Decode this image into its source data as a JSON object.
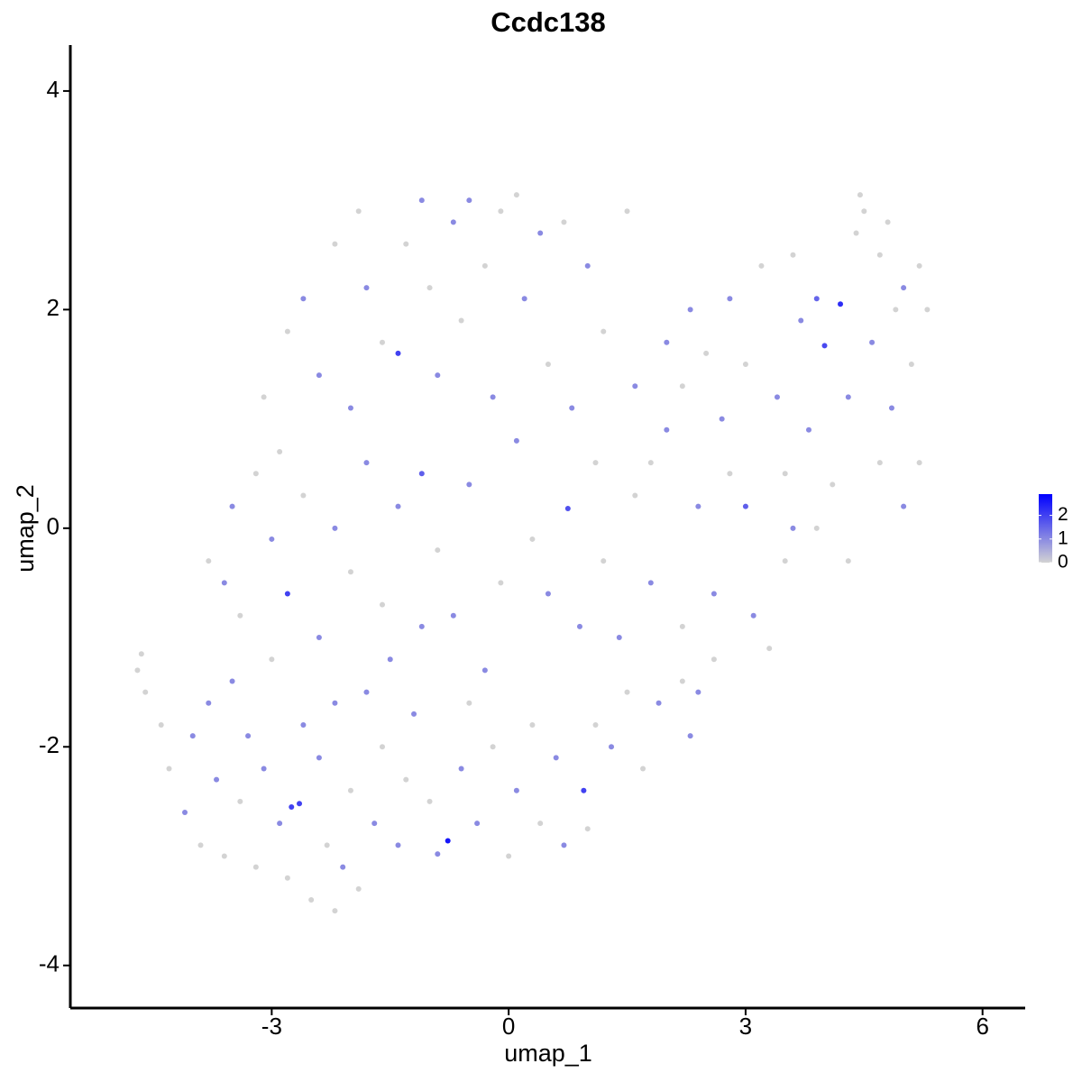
{
  "chart_data": {
    "type": "scatter",
    "title": "Ccdc138",
    "x_label": "umap_1",
    "y_label": "umap_2",
    "xlim": [
      -5.55,
      6.54
    ],
    "ylim": [
      -4.39,
      4.42
    ],
    "xticks": [
      -3,
      0,
      3,
      6
    ],
    "yticks": [
      -4,
      -2,
      0,
      2,
      4
    ],
    "color_low": "#d3d3d3",
    "color_high": "#0000ff",
    "color_lim": [
      0,
      2.9
    ],
    "color_ticks": [
      0,
      1,
      2
    ],
    "x": [
      -4.7,
      -4.65,
      -4.6,
      -4.4,
      -4.3,
      -4.1,
      -4.0,
      -3.9,
      -3.8,
      -3.7,
      -3.6,
      -3.5,
      -3.4,
      -3.3,
      -3.2,
      -3.1,
      -3.0,
      -2.9,
      -2.8,
      -2.75,
      -2.65,
      -2.6,
      -2.5,
      -2.4,
      -2.3,
      -2.2,
      -2.1,
      -2.0,
      -1.9,
      -2.2,
      -1.8,
      -1.7,
      -1.6,
      -1.5,
      -1.4,
      -1.3,
      -1.2,
      -1.0,
      -0.9,
      -0.77,
      -0.6,
      -0.5,
      -0.4,
      -0.2,
      0.0,
      0.1,
      0.3,
      0.4,
      0.6,
      0.7,
      0.95,
      1.0,
      1.1,
      1.3,
      1.5,
      1.7,
      1.9,
      2.2,
      2.3,
      2.4,
      2.6,
      -3.5,
      -3.6,
      -3.4,
      -3.8,
      -3.2,
      -3.0,
      -2.8,
      -2.6,
      -2.4,
      -2.2,
      -2.0,
      -1.8,
      -1.6,
      -1.4,
      -1.1,
      -1.1,
      -0.9,
      -0.7,
      -0.5,
      -0.3,
      -0.1,
      0.1,
      0.3,
      0.5,
      0.75,
      0.9,
      1.1,
      1.2,
      1.4,
      1.6,
      1.8,
      2.0,
      2.2,
      2.4,
      2.6,
      2.8,
      3.0,
      3.1,
      3.3,
      3.5,
      3.6,
      -3.1,
      -2.9,
      -2.8,
      -2.6,
      -2.4,
      -2.2,
      -2.0,
      -1.9,
      -1.8,
      -1.6,
      -1.4,
      -1.3,
      -1.1,
      -1.0,
      -0.9,
      -0.7,
      -0.6,
      -0.5,
      -0.3,
      -0.2,
      -0.1,
      0.1,
      0.2,
      0.4,
      0.5,
      0.7,
      0.8,
      1.0,
      1.2,
      1.5,
      1.6,
      1.8,
      2.0,
      2.2,
      2.3,
      2.5,
      2.7,
      2.8,
      3.0,
      3.2,
      3.4,
      3.5,
      3.6,
      3.7,
      3.8,
      3.9,
      4.0,
      4.1,
      4.2,
      4.3,
      4.4,
      4.45,
      4.5,
      4.6,
      4.7,
      4.7,
      4.8,
      4.85,
      4.9,
      5.0,
      5.0,
      5.1,
      5.2,
      5.2,
      5.3,
      3.9,
      4.3
    ],
    "y": [
      -1.3,
      -1.15,
      -1.5,
      -1.8,
      -2.2,
      -2.6,
      -1.9,
      -2.9,
      -1.6,
      -2.3,
      -3.0,
      -1.4,
      -2.5,
      -1.9,
      -3.1,
      -2.2,
      -1.2,
      -2.7,
      -3.2,
      -2.55,
      -2.52,
      -1.8,
      -3.4,
      -2.1,
      -2.9,
      -1.6,
      -3.1,
      -2.4,
      -3.3,
      -3.5,
      -1.5,
      -2.7,
      -2.0,
      -1.2,
      -2.9,
      -2.3,
      -1.7,
      -2.5,
      -2.98,
      -2.86,
      -2.2,
      -1.6,
      -2.7,
      -2.0,
      -3.0,
      -2.4,
      -1.8,
      -2.7,
      -2.1,
      -2.9,
      -2.4,
      -2.75,
      -1.8,
      -2.0,
      -1.5,
      -2.2,
      -1.6,
      -1.4,
      -1.9,
      -1.5,
      -1.2,
      0.2,
      -0.5,
      -0.8,
      -0.3,
      0.5,
      -0.1,
      -0.6,
      0.3,
      -1.0,
      0.0,
      -0.4,
      0.6,
      -0.7,
      0.2,
      -0.9,
      0.5,
      -0.2,
      -0.8,
      0.4,
      -1.3,
      -0.5,
      0.8,
      -0.1,
      -0.6,
      0.18,
      -0.9,
      0.6,
      -0.3,
      -1.0,
      0.3,
      -0.5,
      0.9,
      -0.9,
      0.2,
      -0.6,
      0.5,
      0.2,
      -0.8,
      -1.1,
      -0.3,
      0.0,
      1.2,
      0.7,
      1.8,
      2.1,
      1.4,
      2.6,
      1.1,
      2.9,
      2.2,
      1.7,
      1.6,
      2.6,
      3.0,
      2.2,
      1.4,
      2.8,
      1.9,
      3.0,
      2.4,
      1.2,
      2.9,
      3.05,
      2.1,
      2.7,
      1.5,
      2.8,
      1.1,
      2.4,
      1.8,
      2.9,
      1.3,
      0.6,
      1.7,
      1.3,
      2.0,
      1.6,
      1.0,
      2.1,
      1.5,
      2.4,
      1.2,
      0.5,
      2.5,
      1.9,
      0.9,
      2.1,
      1.67,
      0.4,
      2.05,
      1.2,
      2.7,
      3.05,
      2.9,
      1.7,
      0.6,
      2.5,
      2.8,
      1.1,
      2.0,
      2.2,
      0.2,
      1.5,
      0.6,
      2.4,
      2.0,
      0.0,
      -0.3
    ],
    "values": [
      0,
      0,
      0,
      0,
      0,
      1,
      1,
      0,
      1,
      1,
      0,
      1,
      0,
      1,
      0,
      1,
      0,
      1,
      0,
      2,
      2,
      1,
      0,
      1,
      0,
      1,
      1,
      0,
      0,
      0,
      1,
      1,
      0,
      1,
      1,
      0,
      1,
      0,
      1,
      2.6,
      1,
      0,
      1,
      0,
      0,
      1,
      0,
      0,
      1,
      1,
      2,
      0,
      0,
      1,
      0,
      0,
      1,
      0,
      1,
      1,
      0,
      1,
      1,
      0,
      0,
      0,
      1,
      2,
      0,
      1,
      1,
      0,
      1,
      0,
      1,
      1,
      1.6,
      0,
      1,
      1,
      1,
      0,
      1,
      0,
      1,
      1.8,
      1,
      0,
      0,
      1,
      0,
      1,
      1,
      0,
      1,
      1,
      0,
      1.6,
      1,
      0,
      0,
      1,
      0,
      0,
      0,
      1,
      1,
      0,
      1,
      0,
      1,
      0,
      2,
      0,
      1,
      0,
      1,
      1,
      0,
      1,
      0,
      1,
      0,
      0,
      1,
      1,
      0,
      0,
      1,
      1,
      0,
      0,
      1,
      0,
      1,
      0,
      1,
      0,
      1,
      1,
      0,
      0,
      1,
      0,
      0,
      1,
      1,
      1.5,
      1.9,
      0,
      2.3,
      1,
      0,
      0,
      0,
      1,
      0,
      0,
      0,
      1,
      0,
      1,
      1,
      0,
      0,
      0,
      0,
      0,
      0
    ]
  }
}
